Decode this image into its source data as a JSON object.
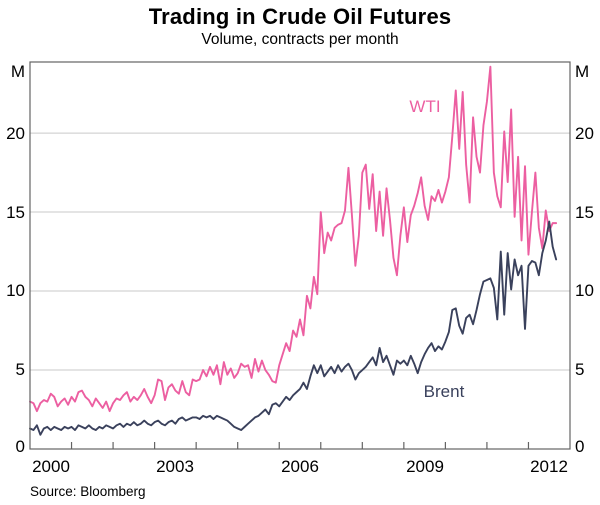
{
  "header": {
    "title": "Trading in Crude Oil Futures",
    "subtitle": "Volume, contracts per month"
  },
  "footer": {
    "source": "Source: Bloomberg"
  },
  "axes": {
    "y_unit": "M",
    "y_tick_labels": [
      "M",
      "20",
      "15",
      "10",
      "5",
      "0"
    ],
    "x_tick_labels": [
      "2000",
      "2003",
      "2006",
      "2009",
      "2012"
    ]
  },
  "colors": {
    "wti": "#ec5fa1",
    "brent": "#3a415c",
    "gridline": "#c9c9c9",
    "frame": "#636363"
  },
  "chart_data": {
    "type": "line",
    "title": "Trading in Crude Oil Futures",
    "subtitle": "Volume, contracts per month",
    "xlabel": "",
    "ylabel": "Volume (millions of contracts per month)",
    "x_axis_range": [
      2000,
      2013
    ],
    "ylim": [
      0,
      24.5
    ],
    "gridlines_y": [
      5,
      10,
      15,
      20
    ],
    "year_ticks": [
      2001,
      2002,
      2003,
      2004,
      2005,
      2006,
      2007,
      2008,
      2009,
      2010,
      2011,
      2012
    ],
    "x_start_year": 2000,
    "x_step_months": 1,
    "legend_position": "inline-labels",
    "series": [
      {
        "name": "WTI",
        "color": "#ec5fa1",
        "values": [
          3.0,
          2.9,
          2.4,
          2.9,
          3.1,
          3.0,
          3.5,
          3.3,
          2.7,
          3.0,
          3.2,
          2.8,
          3.3,
          3.0,
          3.6,
          3.7,
          3.3,
          3.1,
          2.7,
          3.2,
          2.9,
          2.6,
          3.0,
          2.4,
          2.9,
          3.2,
          3.1,
          3.4,
          3.6,
          3.0,
          3.3,
          3.1,
          3.4,
          3.8,
          3.3,
          2.9,
          3.4,
          4.4,
          4.3,
          3.1,
          3.9,
          4.1,
          3.7,
          3.5,
          4.3,
          3.6,
          3.4,
          4.4,
          4.3,
          4.4,
          5.0,
          4.6,
          5.2,
          4.7,
          5.3,
          4.1,
          5.5,
          4.7,
          5.1,
          4.5,
          4.8,
          5.4,
          5.2,
          5.3,
          4.5,
          5.7,
          4.9,
          5.6,
          5.0,
          4.7,
          4.3,
          4.2,
          5.3,
          6.0,
          6.7,
          6.2,
          7.5,
          7.1,
          8.2,
          7.2,
          9.7,
          8.9,
          10.9,
          9.8,
          15.0,
          12.4,
          13.7,
          13.2,
          14.0,
          14.2,
          14.3,
          15.1,
          17.8,
          14.8,
          11.6,
          13.5,
          17.5,
          18.0,
          15.2,
          17.4,
          13.8,
          16.3,
          13.5,
          16.5,
          14.5,
          12.1,
          11.0,
          13.5,
          15.3,
          13.1,
          14.8,
          15.4,
          16.2,
          17.2,
          15.4,
          14.5,
          16.0,
          15.7,
          16.4,
          15.6,
          16.3,
          17.2,
          19.8,
          22.7,
          19.0,
          22.6,
          18.0,
          15.6,
          21.0,
          18.5,
          17.5,
          20.5,
          22.0,
          24.2,
          17.5,
          16.0,
          15.3,
          20.1,
          16.9,
          21.5,
          14.7,
          18.5,
          13.2,
          17.9,
          12.3,
          15.0,
          17.5,
          14.0,
          12.7,
          15.1,
          13.8,
          14.3,
          14.3
        ]
      },
      {
        "name": "Brent",
        "color": "#3a415c",
        "values": [
          1.3,
          1.2,
          1.5,
          0.9,
          1.3,
          1.4,
          1.2,
          1.4,
          1.3,
          1.2,
          1.4,
          1.3,
          1.4,
          1.2,
          1.5,
          1.4,
          1.3,
          1.5,
          1.3,
          1.2,
          1.4,
          1.3,
          1.5,
          1.4,
          1.3,
          1.5,
          1.6,
          1.4,
          1.6,
          1.5,
          1.7,
          1.5,
          1.6,
          1.8,
          1.6,
          1.5,
          1.7,
          1.8,
          1.6,
          1.5,
          1.7,
          1.8,
          1.6,
          1.9,
          2.0,
          1.8,
          1.9,
          2.0,
          2.0,
          1.9,
          2.1,
          2.0,
          2.1,
          1.9,
          2.1,
          2.0,
          1.9,
          1.8,
          1.6,
          1.4,
          1.3,
          1.2,
          1.4,
          1.6,
          1.8,
          2.0,
          2.1,
          2.3,
          2.5,
          2.2,
          2.8,
          2.9,
          2.7,
          3.0,
          3.3,
          3.1,
          3.4,
          3.6,
          3.8,
          4.2,
          3.8,
          4.6,
          5.3,
          4.8,
          5.3,
          4.6,
          4.9,
          5.2,
          4.8,
          5.3,
          4.9,
          5.2,
          5.4,
          5.0,
          4.4,
          4.8,
          5.0,
          5.2,
          5.5,
          5.8,
          5.3,
          6.4,
          5.5,
          5.9,
          5.3,
          4.7,
          5.6,
          5.4,
          5.6,
          5.3,
          5.9,
          5.4,
          4.8,
          5.5,
          6.0,
          6.4,
          6.7,
          6.2,
          6.5,
          6.3,
          6.8,
          7.4,
          8.8,
          8.9,
          7.8,
          7.3,
          8.3,
          8.5,
          7.9,
          8.8,
          9.8,
          10.6,
          10.7,
          10.8,
          10.2,
          8.2,
          12.5,
          8.5,
          12.4,
          10.1,
          12.0,
          11.0,
          11.6,
          7.6,
          11.6,
          11.9,
          11.8,
          11.0,
          12.4,
          13.2,
          14.4,
          12.8,
          12.0
        ]
      }
    ]
  }
}
